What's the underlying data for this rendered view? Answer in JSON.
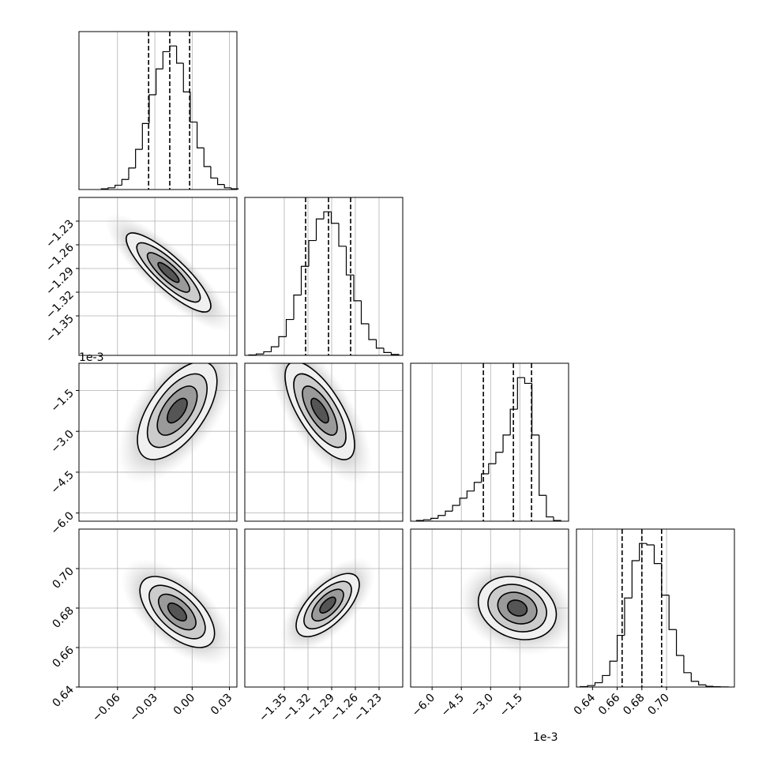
{
  "chart_data": {
    "type": "corner",
    "grid": true,
    "levels": [
      0.5,
      1,
      1.5,
      2
    ],
    "line_color": "#000000",
    "scatter_color": "#9a9a9a",
    "params": [
      {
        "xlim": [
          -0.091,
          0.036
        ],
        "xticks": [
          {
            "value": -0.06,
            "label": "−0.06"
          },
          {
            "value": -0.03,
            "label": "−0.03"
          },
          {
            "value": 0,
            "label": "0.00"
          },
          {
            "value": 0.03,
            "label": "0.03"
          }
        ],
        "hist": {
          "bins": [
            -0.073,
            -0.0675,
            -0.062,
            -0.0565,
            -0.051,
            -0.0455,
            -0.04,
            -0.0345,
            -0.029,
            -0.0235,
            -0.018,
            -0.0125,
            -0.007,
            -0.0015,
            0.004,
            0.0095,
            0.015,
            0.0205,
            0.026,
            0.0315,
            0.037
          ],
          "counts": [
            5,
            12,
            30,
            70,
            150,
            280,
            460,
            660,
            840,
            960,
            1000,
            880,
            680,
            470,
            290,
            160,
            80,
            35,
            12,
            5
          ]
        },
        "quantiles": [
          -0.035,
          -0.018,
          -0.002
        ]
      },
      {
        "xlim": [
          -1.4,
          -1.2
        ],
        "ylim": [
          -1.4,
          -1.2
        ],
        "xticks": [
          {
            "value": -1.35,
            "label": "−1.35"
          },
          {
            "value": -1.32,
            "label": "−1.32"
          },
          {
            "value": -1.29,
            "label": "−1.29"
          },
          {
            "value": -1.26,
            "label": "−1.26"
          },
          {
            "value": -1.23,
            "label": "−1.23"
          }
        ],
        "yticks": [
          {
            "value": -1.35,
            "label": "−1.35"
          },
          {
            "value": -1.32,
            "label": "−1.32"
          },
          {
            "value": -1.29,
            "label": "−1.29"
          },
          {
            "value": -1.26,
            "label": "−1.26"
          },
          {
            "value": -1.23,
            "label": "−1.23"
          }
        ],
        "hist": {
          "bins": [
            -1.395,
            -1.3855,
            -1.376,
            -1.3665,
            -1.357,
            -1.3475,
            -1.338,
            -1.3285,
            -1.319,
            -1.3095,
            -1.3,
            -1.2905,
            -1.281,
            -1.2715,
            -1.262,
            -1.2525,
            -1.243,
            -1.2335,
            -1.224,
            -1.2145,
            -1.205
          ],
          "counts": [
            3,
            10,
            25,
            60,
            130,
            250,
            420,
            620,
            800,
            950,
            1000,
            920,
            760,
            560,
            380,
            220,
            110,
            50,
            20,
            6
          ]
        },
        "quantiles": [
          -1.323,
          -1.294,
          -1.266
        ]
      },
      {
        "xlim": [
          -7.1,
          1.0
        ],
        "ylim": [
          -6.3,
          -0.5
        ],
        "offset": "1e-3",
        "xticks": [
          {
            "value": -6.0,
            "label": "−6.0"
          },
          {
            "value": -4.5,
            "label": "−4.5"
          },
          {
            "value": -3.0,
            "label": "−3.0"
          },
          {
            "value": -1.5,
            "label": "−1.5"
          }
        ],
        "yticks": [
          {
            "value": -6.0,
            "label": "−6.0"
          },
          {
            "value": -4.5,
            "label": "−4.5"
          },
          {
            "value": -3.0,
            "label": "−3.0"
          },
          {
            "value": -1.5,
            "label": "−1.5"
          }
        ],
        "hist": {
          "bins": [
            -6.8,
            -6.43,
            -6.06,
            -5.69,
            -5.32,
            -4.95,
            -4.58,
            -4.21,
            -3.84,
            -3.47,
            -3.1,
            -2.73,
            -2.36,
            -1.99,
            -1.62,
            -1.25,
            -0.88,
            -0.51,
            -0.14,
            0.23,
            0.6
          ],
          "counts": [
            5,
            10,
            20,
            40,
            70,
            110,
            160,
            210,
            270,
            330,
            400,
            480,
            600,
            780,
            1000,
            960,
            600,
            180,
            30,
            5
          ]
        },
        "quantiles": [
          -3.37,
          -1.83,
          -0.9
        ]
      },
      {
        "xlim": [
          0.627,
          0.755
        ],
        "ylim": [
          0.64,
          0.72
        ],
        "xticks": [
          {
            "value": 0.64,
            "label": "0.64"
          },
          {
            "value": 0.66,
            "label": "0.66"
          },
          {
            "value": 0.68,
            "label": "0.68"
          },
          {
            "value": 0.7,
            "label": "0.70"
          }
        ],
        "yticks": [
          {
            "value": 0.64,
            "label": "0.64"
          },
          {
            "value": 0.66,
            "label": "0.66"
          },
          {
            "value": 0.68,
            "label": "0.68"
          },
          {
            "value": 0.7,
            "label": "0.70"
          }
        ],
        "hist": {
          "bins": [
            0.63,
            0.636,
            0.642,
            0.648,
            0.654,
            0.66,
            0.666,
            0.672,
            0.678,
            0.684,
            0.69,
            0.696,
            0.702,
            0.708,
            0.714,
            0.72,
            0.726,
            0.732,
            0.738,
            0.744,
            0.75
          ],
          "counts": [
            3,
            10,
            30,
            80,
            180,
            360,
            620,
            880,
            1000,
            990,
            860,
            640,
            400,
            220,
            100,
            40,
            15,
            5,
            2,
            1
          ]
        },
        "quantiles": [
          0.664,
          0.68,
          0.696
        ]
      }
    ],
    "panels": [
      {
        "center": [
          -0.019,
          -1.295
        ],
        "sigma": [
          0.017,
          0.025
        ],
        "corr": -0.85
      },
      {
        "center": [
          -0.012,
          -2.24
        ],
        "sigma": [
          0.016,
          0.9
        ],
        "corr": 0.6
      },
      {
        "center": [
          -1.305,
          -2.24
        ],
        "sigma": [
          0.022,
          0.9
        ],
        "corr": -0.7
      },
      {
        "center": [
          -0.012,
          0.678
        ],
        "sigma": [
          0.015,
          0.009
        ],
        "corr": -0.6
      },
      {
        "center": [
          -1.295,
          0.6815
        ],
        "sigma": [
          0.02,
          0.008
        ],
        "corr": 0.65
      },
      {
        "center": [
          -1.63,
          0.68
        ],
        "sigma": [
          1.0,
          0.008
        ],
        "corr": -0.2
      }
    ]
  }
}
